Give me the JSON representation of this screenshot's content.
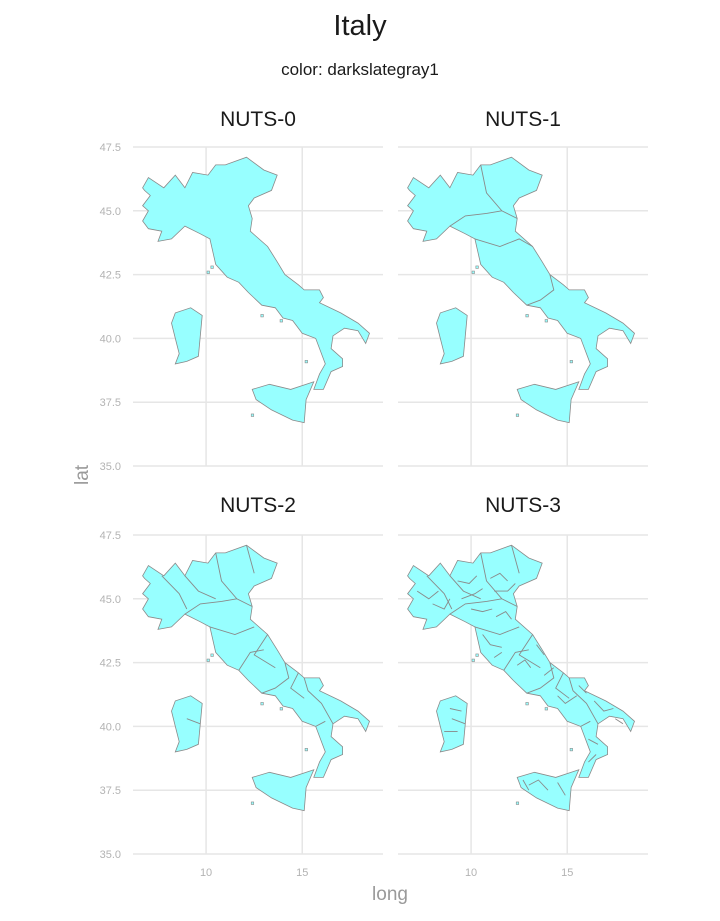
{
  "title": "Italy",
  "subtitle": "color: darkslategray1",
  "x_axis_title": "long",
  "y_axis_title": "lat",
  "colors": {
    "fill": "#97FFFF",
    "border": "#8a8a8a",
    "grid": "#e6e6e6",
    "tick_text": "#b3b3b3"
  },
  "chart_data": {
    "type": "map",
    "region": "Italy",
    "fill_color_name": "darkslategray1",
    "x_ticks": [
      "10",
      "15"
    ],
    "y_ticks": [
      "35.0",
      "37.5",
      "40.0",
      "42.5",
      "45.0",
      "47.5"
    ],
    "x_tick_values": [
      10,
      15
    ],
    "y_tick_values": [
      35.0,
      37.5,
      40.0,
      42.5,
      45.0,
      47.5
    ],
    "facets": [
      {
        "label": "NUTS-0",
        "level": 0,
        "approx_regions": 1
      },
      {
        "label": "NUTS-1",
        "level": 1,
        "approx_regions": 5
      },
      {
        "label": "NUTS-2",
        "level": 2,
        "approx_regions": 21
      },
      {
        "label": "NUTS-3",
        "level": 3,
        "approx_regions": 107
      }
    ],
    "grid": true,
    "facet_layout": "2x2"
  }
}
